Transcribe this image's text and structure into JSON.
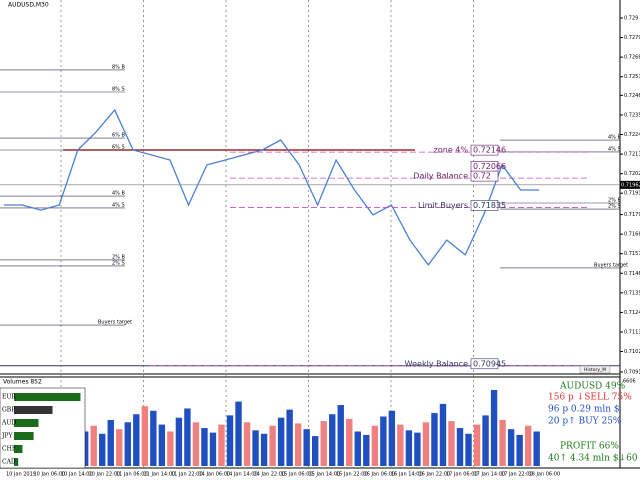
{
  "header": {
    "title": "AUDUSD,M30"
  },
  "price_axis": {
    "range": [
      0.7091,
      0.729
    ],
    "ticks": [
      0.729,
      0.7279,
      0.7268,
      0.7257,
      0.72465,
      0.72355,
      0.72245,
      0.72135,
      0.72025,
      0.71915,
      0.71795,
      0.71685,
      0.71575,
      0.71465,
      0.71355,
      0.71245,
      0.71135,
      0.71025,
      0.7091
    ],
    "current": 0.71962
  },
  "time_axis": {
    "labels": [
      "10 Jan 2019",
      "10 Jan 06:00",
      "10 Jan 14:00",
      "10 Jan 22:00",
      "11 Jan 06:00",
      "11 Jan 14:00",
      "11 Jan 22:00",
      "14 Jan 06:00",
      "14 Jan 14:00",
      "14 Jan 22:00",
      "15 Jan 06:00",
      "15 Jan 14:00",
      "15 Jan 22:00",
      "16 Jan 06:00",
      "16 Jan 14:00",
      "16 Jan 22:00",
      "17 Jan 06:00",
      "17 Jan 14:00",
      "17 Jan 22:00",
      "18 Jan 06:00"
    ]
  },
  "price_path": [
    0.71849,
    0.71849,
    0.7182,
    0.71849,
    0.72158,
    0.7226,
    0.72383,
    0.72158,
    0.7213,
    0.72102,
    0.71849,
    0.72074,
    0.72102,
    0.7213,
    0.72158,
    0.72214,
    0.72074,
    0.71849,
    0.72102,
    0.71933,
    0.71793,
    0.71849,
    0.71652,
    0.71512,
    0.71652,
    0.71568,
    0.71793,
    0.72074,
    0.71933,
    0.71933
  ],
  "levels": [
    {
      "label": "8% B",
      "price": 0.72608
    },
    {
      "label": "8% S",
      "price": 0.72484
    },
    {
      "label": "6% B",
      "price": 0.72225
    },
    {
      "label": "6% S",
      "price": 0.72158
    },
    {
      "label": "4% B",
      "price": 0.71899
    },
    {
      "label": "4% S",
      "price": 0.71832
    },
    {
      "label": "2% B",
      "price": 0.7154
    },
    {
      "label": "2% S",
      "price": 0.71506
    },
    {
      "label": "Buyers target",
      "price": 0.71174
    }
  ],
  "right_levels": [
    {
      "label": "4% B",
      "price": 0.72214
    },
    {
      "label": "4% S",
      "price": 0.72147
    },
    {
      "label": "2% B",
      "price": 0.7186
    },
    {
      "label": "2% S",
      "price": 0.71826
    },
    {
      "label": "Buyers target",
      "price": 0.71495
    }
  ],
  "zones": [
    {
      "label": "zone 4%",
      "price": 0.72146,
      "price2": 0.72066
    },
    {
      "label": "Daily Balance",
      "price": 0.72
    },
    {
      "label": "Limit Buyers",
      "price": 0.71835
    },
    {
      "label": "Weekly Balance",
      "price": 0.70945
    }
  ],
  "button": "History_M",
  "volumes": {
    "title": "Volumes 852",
    "max": 6606,
    "values": [
      3000,
      3500,
      2800,
      4000,
      3200,
      3800,
      4500,
      5200,
      4800,
      3600,
      3000,
      4200,
      5000,
      3800,
      3300,
      2900,
      3600,
      4400,
      5600,
      3800,
      3100,
      2800,
      3500,
      4200,
      4900,
      3700,
      3200,
      2600,
      3900,
      4500,
      5300,
      4100,
      3000,
      2700,
      3500,
      4300,
      4800,
      3600,
      3100,
      2900,
      3800,
      4600,
      5400,
      3900,
      3300,
      2800,
      3600,
      4400,
      6606,
      4000,
      3200,
      2700,
      3500,
      3000
    ]
  },
  "strength": [
    {
      "name": "EUR",
      "value": 95
    },
    {
      "name": "GBP",
      "value": 55
    },
    {
      "name": "AUD",
      "value": 35
    },
    {
      "name": "JPY",
      "value": 28
    },
    {
      "name": "CHF",
      "value": 12
    },
    {
      "name": "CAD",
      "value": 6
    }
  ],
  "info": {
    "symbol": "AUDUSD 49%",
    "sell": "156 p ↓SELL 75%",
    "volume": "96 p  0.29 mln $",
    "buy": "20 p↑ BUY 25%",
    "profit": "PROFIT 66%",
    "bottom": "40↑ 4.34 mln $↓60"
  }
}
